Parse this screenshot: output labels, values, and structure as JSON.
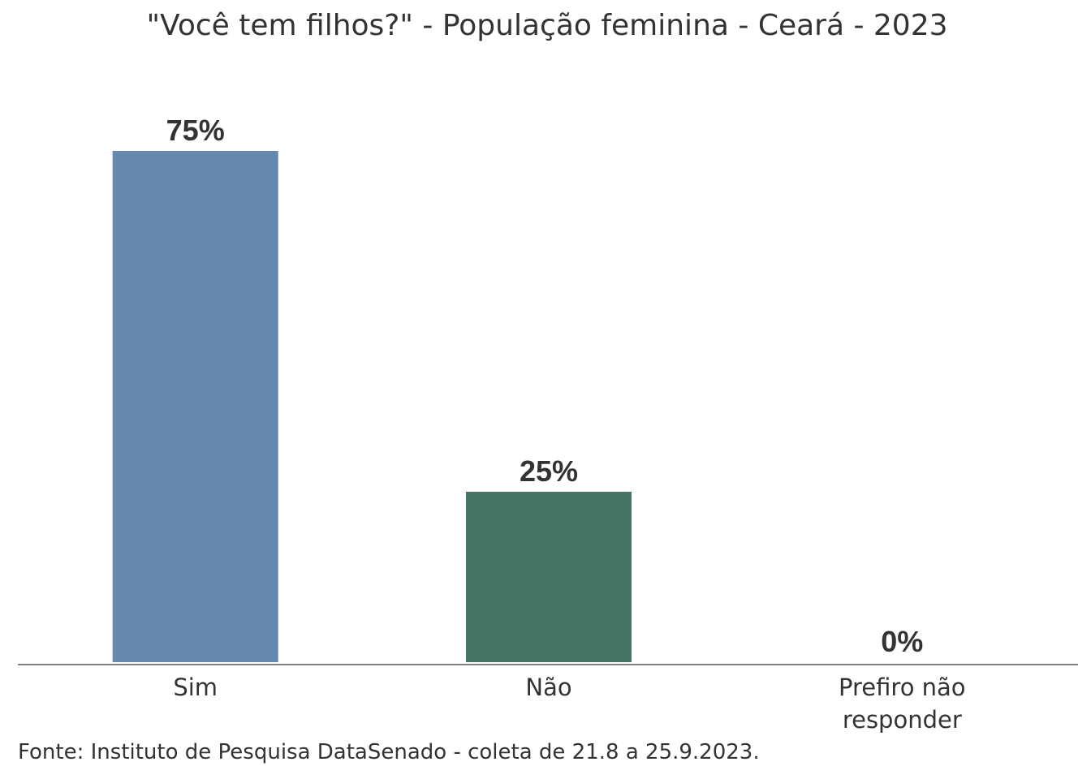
{
  "chart_data": {
    "type": "bar",
    "title": "\"Você tem filhos?\" - População feminina - Ceará - 2023",
    "categories": [
      "Sim",
      "Não",
      "Prefiro não responder"
    ],
    "category_lines": [
      [
        "Sim"
      ],
      [
        "Não"
      ],
      [
        "Prefiro não",
        "responder"
      ]
    ],
    "values": [
      75,
      25,
      0
    ],
    "value_labels": [
      "75%",
      "25%",
      "0%"
    ],
    "colors": [
      "#6588ae",
      "#467563",
      "#6588ae"
    ],
    "ylim": [
      0,
      75
    ],
    "grid": false,
    "legend": "none",
    "xlabel": "",
    "ylabel": ""
  },
  "source": "Fonte: Instituto de Pesquisa DataSenado - coleta de 21.8 a 25.9.2023."
}
